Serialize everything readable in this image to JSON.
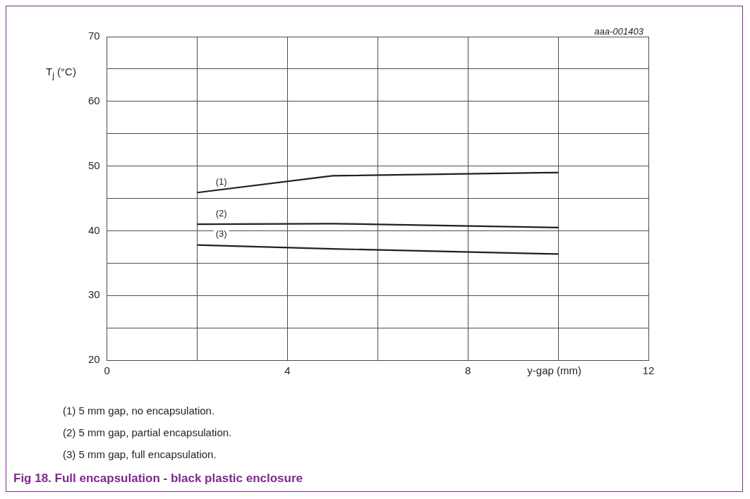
{
  "chart_data": {
    "type": "line",
    "title": "Fig 18. Full encapsulation - black plastic enclosure",
    "xlabel": "y-gap (mm)",
    "ylabel": "T$_{j}$ (°C)",
    "x": [
      2,
      5,
      10
    ],
    "series": [
      {
        "name": "(1)",
        "color": "#231f20",
        "values": [
          45.9,
          48.5,
          49.0
        ]
      },
      {
        "name": "(2)",
        "color": "#231f20",
        "values": [
          41.0,
          41.1,
          40.5
        ]
      },
      {
        "name": "(3)",
        "color": "#231f20",
        "values": [
          37.8,
          37.2,
          36.4
        ]
      }
    ],
    "xlim": [
      0,
      12
    ],
    "xticks": [
      0,
      {
        "value": 2,
        "label": null
      },
      4,
      {
        "value": 6,
        "label": null
      },
      8,
      {
        "value": 10,
        "label": null
      },
      12
    ],
    "ylim": [
      20,
      70
    ],
    "yticks": [
      20,
      {
        "value": 25,
        "label": null
      },
      30,
      {
        "value": 35,
        "label": null
      },
      40,
      {
        "value": 45,
        "label": null
      },
      50,
      {
        "value": 55,
        "label": null
      },
      60,
      {
        "value": 65,
        "label": null
      },
      70
    ],
    "grid": true,
    "legend": false,
    "marker": "none",
    "line_style": "solid",
    "annotations": [
      "aaa-001403",
      "(1) 5 mm gap, no encapsulation.",
      "(2) 5 mm gap, partial encapsulation.",
      "(3) 5 mm gap, full encapsulation."
    ]
  }
}
